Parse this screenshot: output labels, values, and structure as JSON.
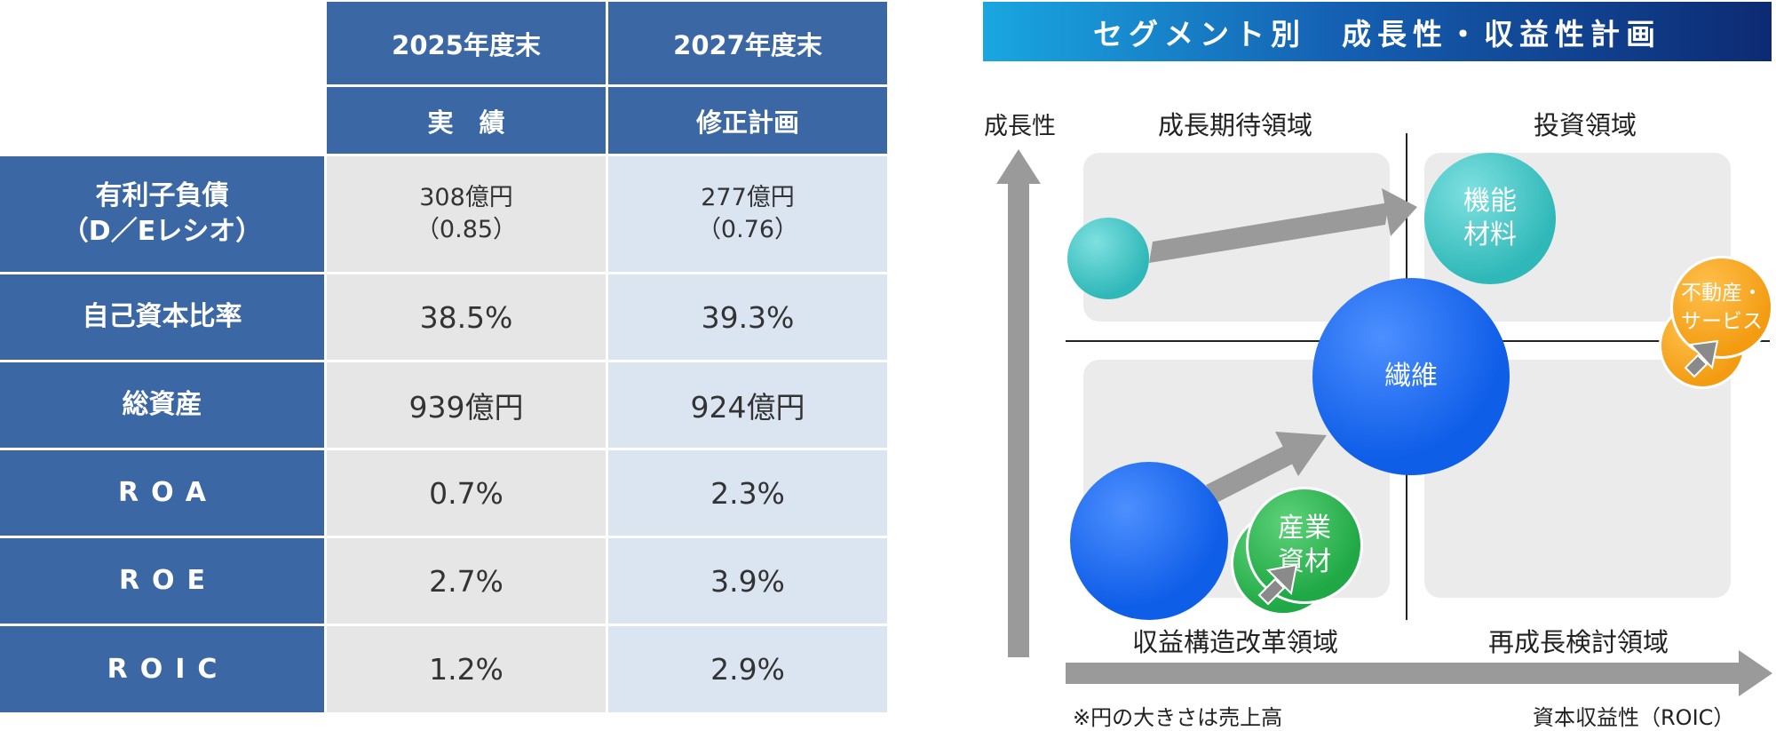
{
  "table": {
    "col1_header": "2025年度末",
    "col1_sub": "実　績",
    "col2_header": "2027年度末",
    "col2_sub": "修正計画",
    "rows": [
      {
        "label_line1": "有利子負債",
        "label_line2": "（D／Eレシオ）",
        "v1_line1": "308億円",
        "v1_line2": "（0.85）",
        "v2_line1": "277億円",
        "v2_line2": "（0.76）"
      },
      {
        "label": "自己資本比率",
        "v1": "38.5%",
        "v2": "39.3%"
      },
      {
        "label": "総資産",
        "v1": "939億円",
        "v2": "924億円"
      },
      {
        "label": "ROA",
        "v1": "0.7%",
        "v2": "2.3%"
      },
      {
        "label": "ROE",
        "v1": "2.7%",
        "v2": "3.9%"
      },
      {
        "label": "ROIC",
        "v1": "1.2%",
        "v2": "2.9%"
      }
    ]
  },
  "matrix": {
    "title": "セグメント別　成長性・収益性計画",
    "y_axis_label": "成長性",
    "x_axis_label": "資本収益性（ROIC）",
    "note": "※円の大きさは売上高",
    "quadrants": {
      "top_left": "成長期待領域",
      "top_right": "投資領域",
      "bottom_left": "収益構造改革領域",
      "bottom_right": "再成長検討領域"
    },
    "bubbles": {
      "functional_materials_line1": "機能",
      "functional_materials_line2": "材料",
      "textiles": "繊維",
      "industrial_materials_line1": "産業",
      "industrial_materials_line2": "資材",
      "real_estate_line1": "不動産・",
      "real_estate_line2": "サービス"
    },
    "colors": {
      "teal": "#3cc3c3",
      "blue": "#0f5ee8",
      "green": "#1fa845",
      "orange": "#f39c12",
      "arrow": "#9a9a9a",
      "header_blue": "#3b67a4"
    }
  }
}
